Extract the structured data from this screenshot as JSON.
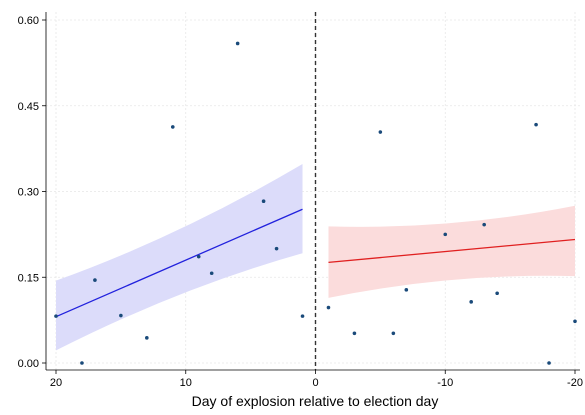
{
  "chart_data": {
    "type": "scatter",
    "title": "",
    "xlabel": "Day of explosion relative to election day",
    "ylabel": "",
    "xlim": [
      20,
      -20
    ],
    "ylim": [
      0,
      0.6
    ],
    "xticks": [
      20,
      10,
      0,
      -10,
      -20
    ],
    "xtick_labels": [
      "20",
      "10",
      "0",
      "-10",
      "-20"
    ],
    "yticks": [
      0,
      0.15,
      0.3,
      0.45,
      0.6
    ],
    "ytick_labels": [
      "0.00",
      "0.15",
      "0.30",
      "0.45",
      "0.60"
    ],
    "grid": true,
    "cutoff_line": 0,
    "series": [
      {
        "points": [
          {
            "x": 20,
            "y": 0.082
          },
          {
            "x": 18,
            "y": 0.0
          },
          {
            "x": 17,
            "y": 0.145
          },
          {
            "x": 15,
            "y": 0.083
          },
          {
            "x": 13,
            "y": 0.044
          },
          {
            "x": 11,
            "y": 0.413
          },
          {
            "x": 9,
            "y": 0.186
          },
          {
            "x": 8,
            "y": 0.157
          },
          {
            "x": 6,
            "y": 0.559
          },
          {
            "x": 4,
            "y": 0.283
          },
          {
            "x": 3,
            "y": 0.2
          },
          {
            "x": 1,
            "y": 0.082
          }
        ]
      },
      {
        "points": [
          {
            "x": -1,
            "y": 0.097
          },
          {
            "x": -3,
            "y": 0.052
          },
          {
            "x": -5,
            "y": 0.404
          },
          {
            "x": -6,
            "y": 0.052
          },
          {
            "x": -7,
            "y": 0.128
          },
          {
            "x": -10,
            "y": 0.225
          },
          {
            "x": -12,
            "y": 0.107
          },
          {
            "x": -13,
            "y": 0.242
          },
          {
            "x": -14,
            "y": 0.122
          },
          {
            "x": -17,
            "y": 0.417
          },
          {
            "x": -18,
            "y": 0.0
          },
          {
            "x": -20,
            "y": 0.073
          }
        ]
      }
    ],
    "fits": [
      {
        "color": "#2222dd",
        "band_color": "#dcdcfa",
        "x": [
          20,
          1
        ],
        "y": [
          0.081,
          0.269
        ],
        "ci_lower": [
          0.022,
          0.192
        ],
        "ci_upper": [
          0.144,
          0.348
        ]
      },
      {
        "color": "#e02020",
        "band_color": "#fbdcdc",
        "x": [
          -1,
          -20
        ],
        "y": [
          0.176,
          0.216
        ],
        "ci_lower": [
          0.114,
          0.152
        ],
        "ci_upper": [
          0.239,
          0.275
        ]
      }
    ],
    "marker_color": "#1a4a7a"
  }
}
